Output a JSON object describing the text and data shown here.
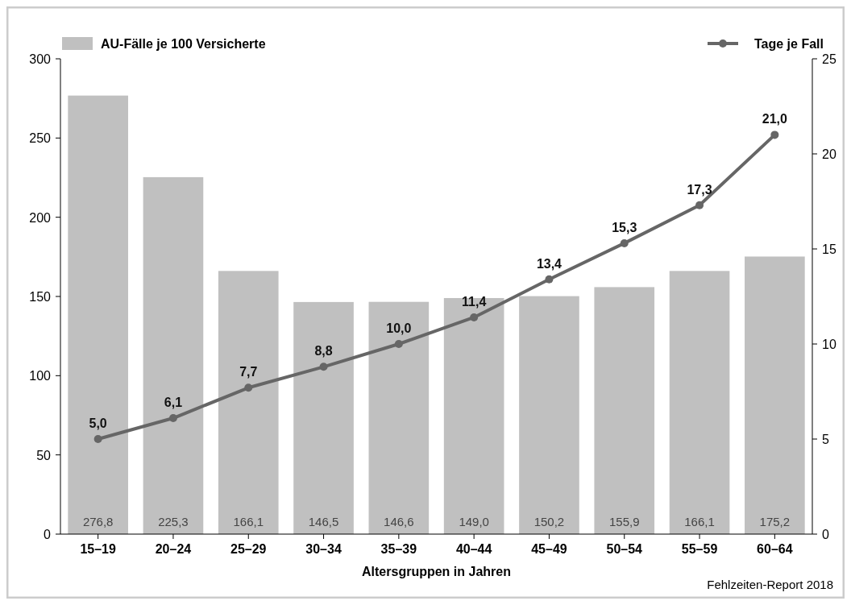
{
  "chart_data": {
    "type": "bar",
    "xlabel": "Altersgruppen in Jahren",
    "categories": [
      "15–19",
      "20–24",
      "25–29",
      "30–34",
      "35–39",
      "40–44",
      "45–49",
      "50–54",
      "55–59",
      "60–64"
    ],
    "series": [
      {
        "name": "AU-Fälle je 100 Versicherte",
        "color": "#c0c0c0",
        "values": [
          276.8,
          225.3,
          166.1,
          146.5,
          146.6,
          149.0,
          150.2,
          155.9,
          166.1,
          175.2
        ],
        "value_labels": [
          "276,8",
          "225,3",
          "166,1",
          "146,5",
          "146,6",
          "149,0",
          "150,2",
          "155,9",
          "166,1",
          "175,2"
        ]
      },
      {
        "name": "Tage je Fall",
        "type": "line",
        "axis": "y2",
        "color": "#666666",
        "marker": "circle",
        "values": [
          5.0,
          6.1,
          7.7,
          8.8,
          10.0,
          11.4,
          13.4,
          15.3,
          17.3,
          21.0
        ],
        "value_labels": [
          "5,0",
          "6,1",
          "7,7",
          "8,8",
          "10,0",
          "11,4",
          "13,4",
          "15,3",
          "17,3",
          "21,0"
        ]
      }
    ],
    "ylim": [
      0,
      300
    ],
    "yticks": [
      0,
      50,
      100,
      150,
      200,
      250,
      300
    ],
    "y2lim": [
      0,
      25
    ],
    "y2ticks": [
      0,
      5,
      10,
      15,
      20,
      25
    ],
    "grid": false,
    "legend": "top",
    "annotations": [
      "Fehlzeiten-Report 2018"
    ]
  }
}
